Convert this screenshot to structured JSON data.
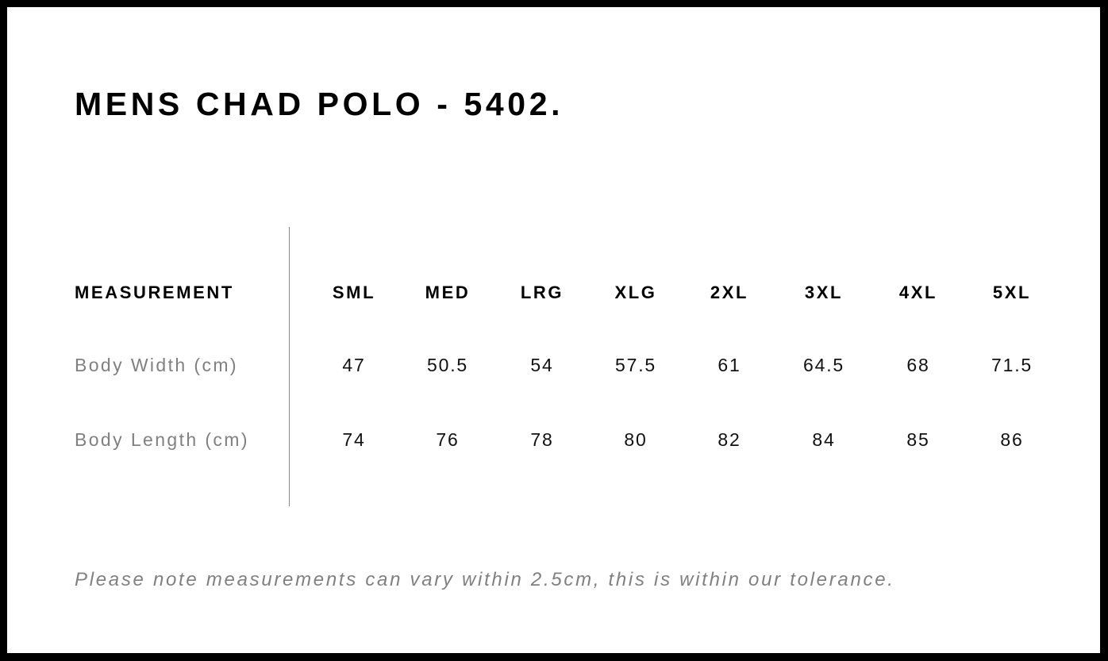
{
  "title": "MENS CHAD POLO - 5402.",
  "table": {
    "header_label": "MEASUREMENT",
    "sizes": [
      "SML",
      "MED",
      "LRG",
      "XLG",
      "2XL",
      "3XL",
      "4XL",
      "5XL"
    ],
    "rows": [
      {
        "label": "Body Width (cm)",
        "values": [
          "47",
          "50.5",
          "54",
          "57.5",
          "61",
          "64.5",
          "68",
          "71.5"
        ]
      },
      {
        "label": "Body Length (cm)",
        "values": [
          "74",
          "76",
          "78",
          "80",
          "82",
          "84",
          "85",
          "86"
        ]
      }
    ]
  },
  "note": "Please note measurements can vary within 2.5cm, this is within our tolerance."
}
